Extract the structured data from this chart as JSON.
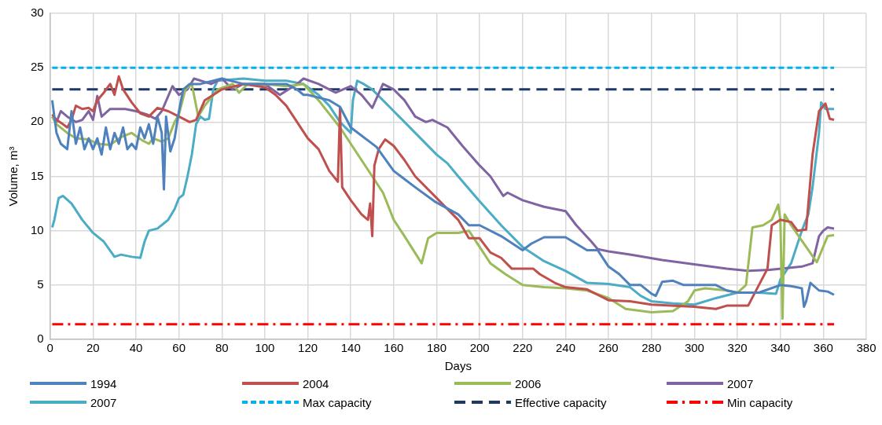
{
  "chart_data": {
    "type": "line",
    "xlabel": "Days",
    "ylabel": "Volume, m³",
    "xlim": [
      0,
      380
    ],
    "xticks": [
      0,
      20,
      40,
      60,
      80,
      100,
      120,
      140,
      160,
      180,
      200,
      220,
      240,
      260,
      280,
      300,
      320,
      340,
      360,
      380
    ],
    "ylim": [
      0,
      30
    ],
    "yticks": [
      0,
      5,
      10,
      15,
      20,
      25,
      30
    ],
    "grid": true,
    "legend": "bottom",
    "marker": "none",
    "line_style": "solid",
    "series": [
      {
        "name": "1994",
        "color": "#4f81bd",
        "x": [
          1,
          3,
          5,
          8,
          10,
          12,
          14,
          16,
          18,
          20,
          22,
          24,
          26,
          28,
          30,
          32,
          34,
          36,
          38,
          40,
          42,
          44,
          46,
          48,
          50,
          52,
          53,
          54,
          56,
          58,
          60,
          62,
          65,
          70,
          80,
          90,
          100,
          110,
          115,
          118,
          120,
          130,
          135,
          140,
          152,
          160,
          170,
          179,
          190,
          195,
          200,
          210,
          220,
          224,
          230,
          240,
          245,
          250,
          255,
          260,
          265,
          270,
          275,
          280,
          282,
          285,
          290,
          295,
          300,
          310,
          315,
          320,
          330,
          340,
          345,
          350,
          351,
          352,
          354,
          358,
          362,
          365
        ],
        "values": [
          22,
          19,
          18,
          17.5,
          21,
          18,
          19.5,
          17.5,
          18.5,
          17.5,
          18.5,
          17,
          19.5,
          17.5,
          19,
          18,
          19.5,
          17.5,
          18,
          17.5,
          19.5,
          18.5,
          19.8,
          18,
          20.5,
          19,
          13.8,
          20.5,
          17.3,
          18.5,
          21,
          23,
          23.5,
          23.5,
          24,
          23.5,
          23.5,
          23.5,
          23,
          22.5,
          22.5,
          22,
          21.4,
          19.5,
          17.7,
          15.5,
          14,
          12.7,
          11.5,
          10.5,
          10.5,
          9.5,
          8.2,
          8.8,
          9.4,
          9.4,
          8.8,
          8.2,
          8.2,
          6.7,
          6,
          5,
          5,
          4.2,
          4,
          5.3,
          5.4,
          5,
          5,
          5,
          4.5,
          4.3,
          4.3,
          5,
          4.9,
          4.7,
          3,
          3.5,
          5.2,
          4.5,
          4.4,
          4.1
        ]
      },
      {
        "name": "2004",
        "color": "#c0504d",
        "x": [
          1,
          3,
          6,
          8,
          10,
          12,
          15,
          18,
          20,
          22,
          25,
          28,
          30,
          32,
          34,
          38,
          42,
          46,
          50,
          55,
          60,
          65,
          68,
          72,
          76,
          80,
          90,
          100,
          105,
          110,
          115,
          120,
          125,
          130,
          134,
          135,
          136,
          140,
          145,
          148,
          149,
          150,
          151,
          153,
          156,
          160,
          165,
          170,
          180,
          190,
          195,
          200,
          205,
          210,
          215,
          225,
          228,
          235,
          240,
          250,
          260,
          270,
          280,
          300,
          310,
          315,
          325,
          330,
          334,
          336,
          340,
          345,
          348,
          352,
          355,
          358,
          361,
          363,
          365
        ],
        "values": [
          20.7,
          20.2,
          19.8,
          19.5,
          20.2,
          21.5,
          21.2,
          21.3,
          21,
          22,
          22.7,
          23.5,
          22.5,
          24.2,
          23,
          21.8,
          20.8,
          20.5,
          21.3,
          21,
          20.5,
          20,
          20.2,
          22,
          22.5,
          23,
          23.5,
          23.2,
          22.5,
          21.5,
          20,
          18.5,
          17.5,
          15.5,
          14.5,
          21.3,
          14,
          12.8,
          11.5,
          11,
          12.5,
          9.5,
          16,
          17.5,
          18.4,
          17.8,
          16.5,
          15,
          13,
          11,
          9.3,
          9.3,
          8,
          7.5,
          6.5,
          6.5,
          6,
          5.2,
          4.8,
          4.6,
          3.6,
          3.5,
          3.2,
          3,
          2.8,
          3.1,
          3.1,
          5,
          6.5,
          10.5,
          11,
          10.8,
          10,
          10.1,
          17,
          21,
          21.7,
          20.3,
          20.2
        ]
      },
      {
        "name": "2006",
        "color": "#9bbb59",
        "x": [
          1,
          3,
          8,
          12,
          18,
          22,
          28,
          33,
          38,
          43,
          46,
          48,
          52,
          55,
          58,
          60,
          63,
          66,
          69,
          72,
          78,
          85,
          88,
          92,
          100,
          110,
          118,
          125,
          135,
          145,
          155,
          160,
          165,
          173,
          176,
          180,
          190,
          195,
          200,
          205,
          212,
          220,
          230,
          240,
          250,
          260,
          268,
          280,
          290,
          297,
          300,
          305,
          315,
          320,
          324,
          327,
          332,
          336,
          339,
          340,
          341,
          342,
          345,
          357,
          362,
          365
        ],
        "values": [
          20.5,
          19.8,
          19,
          18.5,
          18.4,
          18,
          17.9,
          18.6,
          19,
          18.3,
          18,
          18.5,
          18.2,
          18.5,
          20,
          20.7,
          23,
          23.5,
          20.5,
          21.5,
          23,
          23.5,
          22.7,
          23.5,
          23.5,
          23.3,
          23.5,
          22,
          19.5,
          16.5,
          13.5,
          11,
          9.5,
          7,
          9.3,
          9.8,
          9.8,
          10,
          8.5,
          7,
          6,
          5,
          4.8,
          4.7,
          4.5,
          3.8,
          2.8,
          2.5,
          2.6,
          3.5,
          4.5,
          4.7,
          4.5,
          4.3,
          5,
          10.3,
          10.5,
          11,
          12.4,
          11,
          1.9,
          11.5,
          10.5,
          7.1,
          9.5,
          9.6
        ]
      },
      {
        "name": "2007",
        "color": "#8064a2",
        "x": [
          1,
          3,
          5,
          8,
          12,
          15,
          18,
          20,
          22,
          24,
          28,
          35,
          40,
          45,
          49,
          52,
          57,
          60,
          64,
          67,
          75,
          80,
          85,
          90,
          100,
          107,
          115,
          118,
          125,
          130,
          133,
          140,
          145,
          150,
          155,
          160,
          165,
          170,
          175,
          178,
          185,
          192,
          200,
          205,
          211,
          213,
          220,
          230,
          240,
          245,
          252,
          255,
          260,
          270,
          285,
          300,
          315,
          325,
          335,
          350,
          355,
          358,
          360,
          362,
          365
        ],
        "values": [
          20.5,
          20,
          21,
          20.5,
          20,
          20.2,
          21,
          20.2,
          22.4,
          20.5,
          21.2,
          21.2,
          21,
          20.7,
          20.3,
          21,
          23.3,
          22.5,
          23,
          24,
          23.5,
          24,
          23,
          23.5,
          23.5,
          22.5,
          23.5,
          24,
          23.5,
          23,
          22.7,
          23.3,
          22.5,
          21.3,
          23.5,
          23,
          22,
          20.5,
          20,
          20.2,
          19.5,
          17.8,
          16,
          15,
          13.2,
          13.5,
          12.8,
          12.2,
          11.8,
          10.5,
          9,
          8.3,
          8.1,
          7.8,
          7.3,
          6.9,
          6.5,
          6.3,
          6.4,
          6.7,
          7,
          9.5,
          10,
          10.3,
          10.2
        ]
      },
      {
        "name": "2007",
        "color": "#4bacc6",
        "x": [
          1,
          2,
          4,
          6,
          10,
          15,
          20,
          25,
          30,
          33,
          38,
          42,
          44,
          46,
          50,
          55,
          58,
          60,
          62,
          64,
          66,
          68,
          70,
          72,
          74,
          76,
          78,
          90,
          100,
          110,
          118,
          125,
          130,
          135,
          140,
          141,
          143,
          146,
          150,
          160,
          170,
          180,
          185,
          190,
          200,
          210,
          220,
          230,
          240,
          250,
          260,
          270,
          275,
          280,
          290,
          300,
          310,
          320,
          330,
          338,
          340,
          345,
          350,
          353,
          355,
          358,
          359,
          361,
          365
        ],
        "values": [
          10.3,
          11,
          13,
          13.2,
          12.5,
          11,
          9.8,
          9,
          7.6,
          7.8,
          7.6,
          7.5,
          9,
          10,
          10.2,
          11,
          12,
          13,
          13.3,
          15,
          17,
          19.8,
          20.5,
          20.2,
          20.3,
          23,
          23.8,
          24,
          23.8,
          23.8,
          23.5,
          22.5,
          21.5,
          20,
          19,
          22,
          23.8,
          23.5,
          23,
          21,
          19,
          17,
          16.2,
          15,
          12.7,
          10.5,
          8.5,
          7.2,
          6.3,
          5.2,
          5.1,
          4.8,
          4,
          3.5,
          3.3,
          3.2,
          3.8,
          4.3,
          4.3,
          4.2,
          5.5,
          7,
          10,
          11.5,
          14,
          19,
          21.8,
          21.2,
          21.2
        ]
      },
      {
        "name": "Max capacity",
        "color": "#00b0f0",
        "line_style": "dotted",
        "x": [
          1,
          365
        ],
        "values": [
          25,
          25
        ]
      },
      {
        "name": "Effective capacity",
        "color": "#1f3864",
        "line_style": "dashed",
        "x": [
          1,
          365
        ],
        "values": [
          23,
          23
        ]
      },
      {
        "name": "Min capacity",
        "color": "#ff0000",
        "line_style": "dashdot",
        "x": [
          1,
          365
        ],
        "values": [
          1.4,
          1.4
        ]
      }
    ]
  }
}
